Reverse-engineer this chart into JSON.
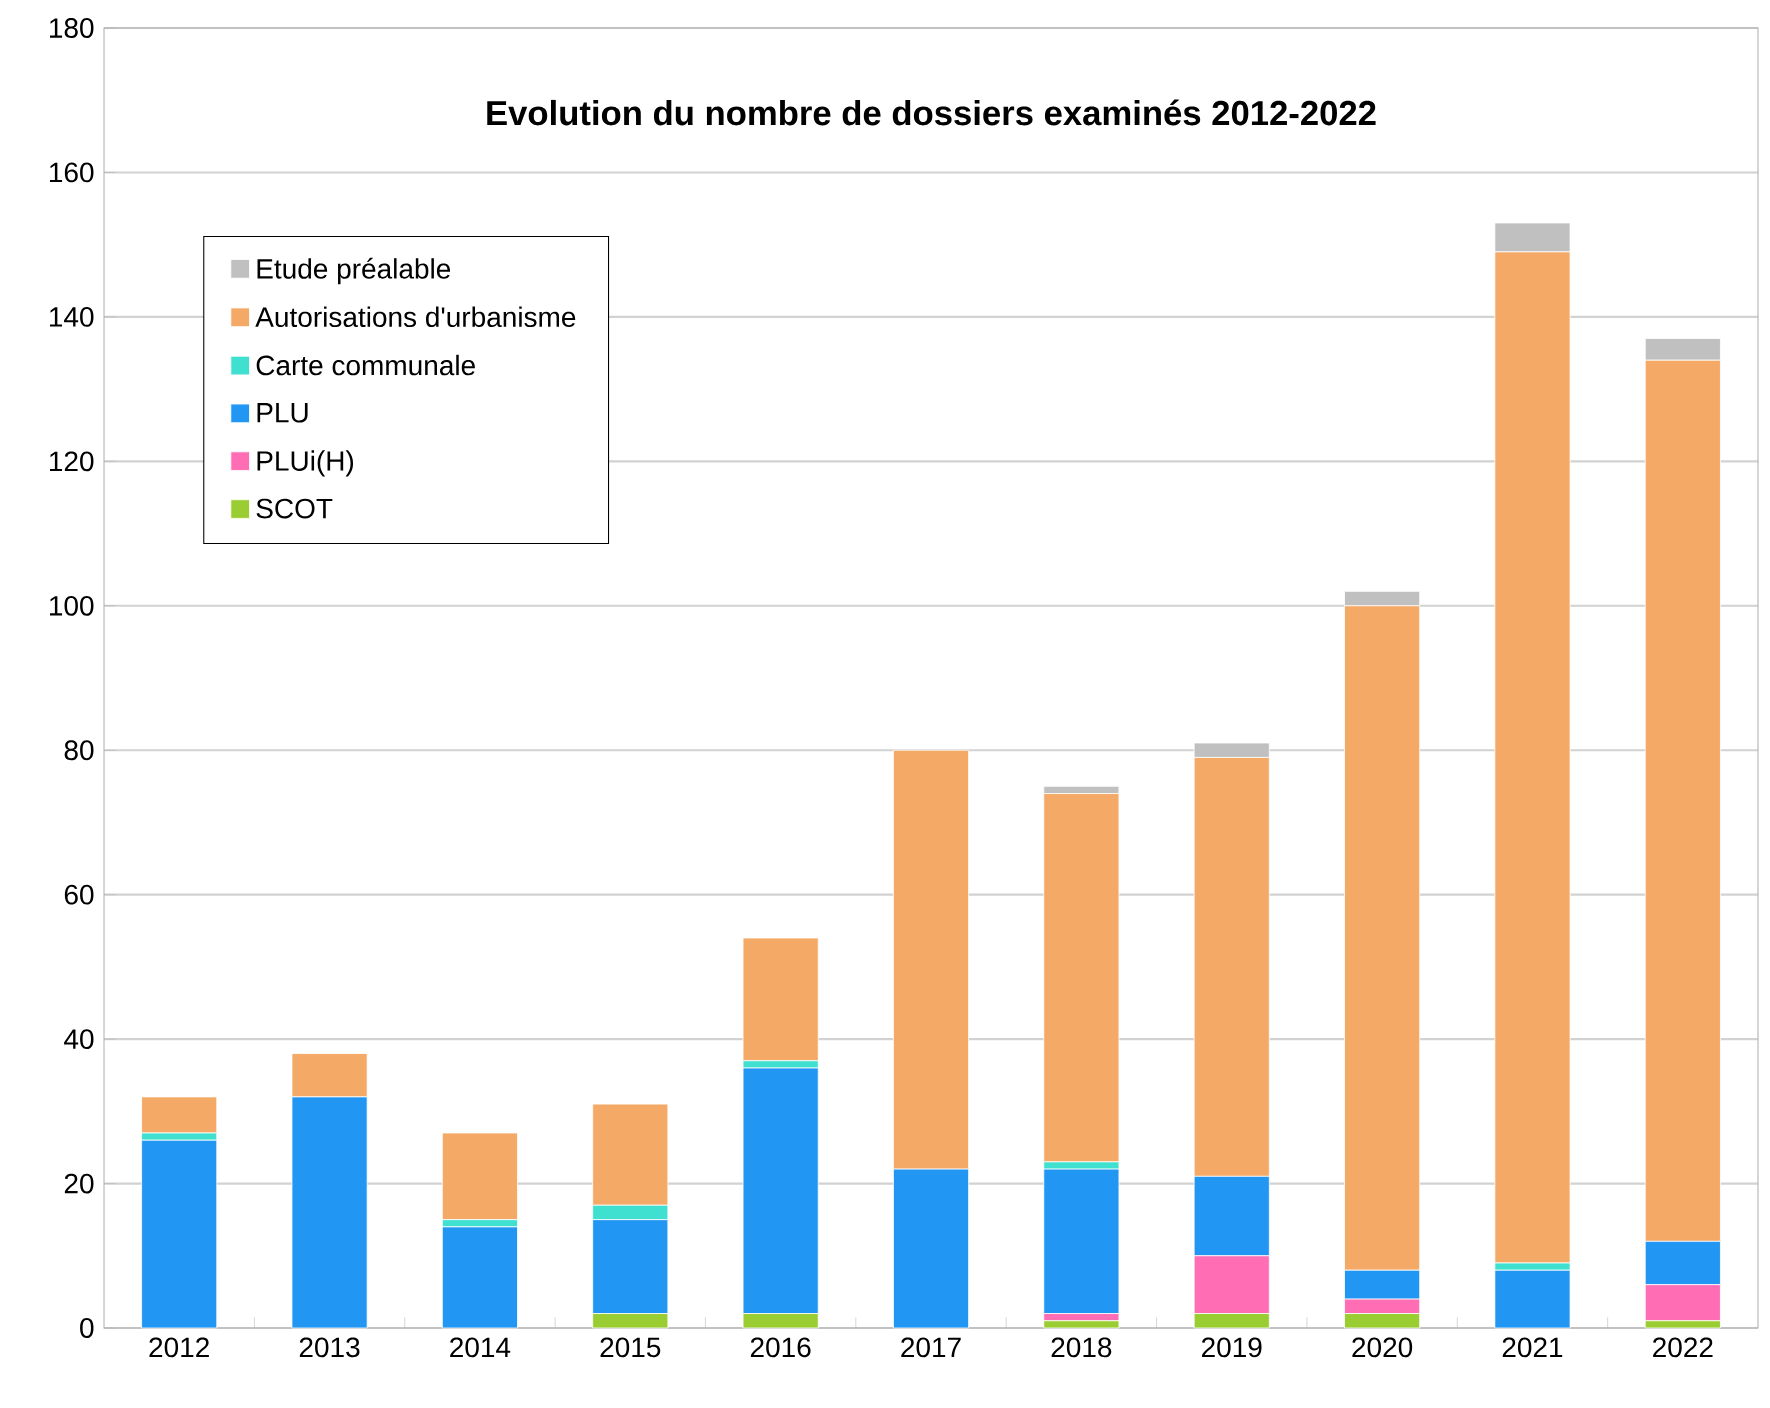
{
  "chart_data": {
    "type": "bar",
    "title": "Evolution du nombre de dossiers examinés 2012-2022",
    "categories": [
      "2012",
      "2013",
      "2014",
      "2015",
      "2016",
      "2017",
      "2018",
      "2019",
      "2020",
      "2021",
      "2022"
    ],
    "stacked": true,
    "ylim": [
      0,
      180
    ],
    "yticks": [
      0,
      20,
      40,
      60,
      80,
      100,
      120,
      140,
      160,
      180
    ],
    "grid": "y",
    "legend": "top left",
    "series": [
      {
        "name": "SCOT",
        "color": "#9acd32",
        "values": [
          0,
          0,
          0,
          2,
          2,
          0,
          1,
          2,
          2,
          0,
          1
        ]
      },
      {
        "name": "PLUi(H)",
        "color": "#ff6eb4",
        "values": [
          0,
          0,
          0,
          0,
          0,
          0,
          1,
          8,
          2,
          0,
          5
        ]
      },
      {
        "name": "PLU",
        "color": "#2196f3",
        "values": [
          26,
          32,
          14,
          13,
          34,
          22,
          20,
          11,
          4,
          8,
          6
        ]
      },
      {
        "name": "Carte communale",
        "color": "#40e0d0",
        "values": [
          1,
          0,
          1,
          2,
          1,
          0,
          1,
          0,
          0,
          1,
          0
        ]
      },
      {
        "name": "Autorisations d'urbanisme",
        "color": "#f4a966",
        "values": [
          5,
          6,
          12,
          14,
          17,
          58,
          51,
          58,
          92,
          140,
          122
        ]
      },
      {
        "name": "Etude préalable",
        "color": "#c0c0c0",
        "values": [
          0,
          0,
          0,
          0,
          0,
          0,
          1,
          2,
          2,
          4,
          3
        ]
      }
    ]
  }
}
